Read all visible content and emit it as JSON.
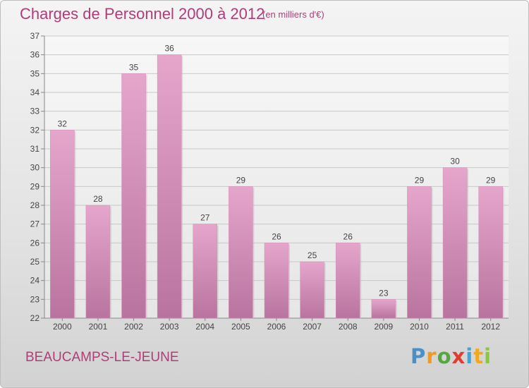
{
  "title": "Charges de Personnel 2000 à 2012",
  "subtitle": "(en milliers d'€)",
  "commune": "BEAUCAMPS-LE-JEUNE",
  "brand": {
    "name": "Proxiti",
    "letters": [
      "P",
      "r",
      "o",
      "x",
      "i",
      "t",
      "i"
    ]
  },
  "colors": {
    "title": "#b03c78",
    "bar_top": "#e6a6cc",
    "bar_bottom": "#b8749e"
  },
  "chart_data": {
    "type": "bar",
    "categories": [
      "2000",
      "2001",
      "2002",
      "2003",
      "2004",
      "2005",
      "2006",
      "2007",
      "2008",
      "2009",
      "2010",
      "2011",
      "2012"
    ],
    "values": [
      32,
      28,
      35,
      36,
      27,
      29,
      26,
      25,
      26,
      23,
      29,
      30,
      29
    ],
    "ylim": [
      22,
      37
    ],
    "yticks": [
      22,
      23,
      24,
      25,
      26,
      27,
      28,
      29,
      30,
      31,
      32,
      33,
      34,
      35,
      36,
      37
    ],
    "grid": true
  }
}
